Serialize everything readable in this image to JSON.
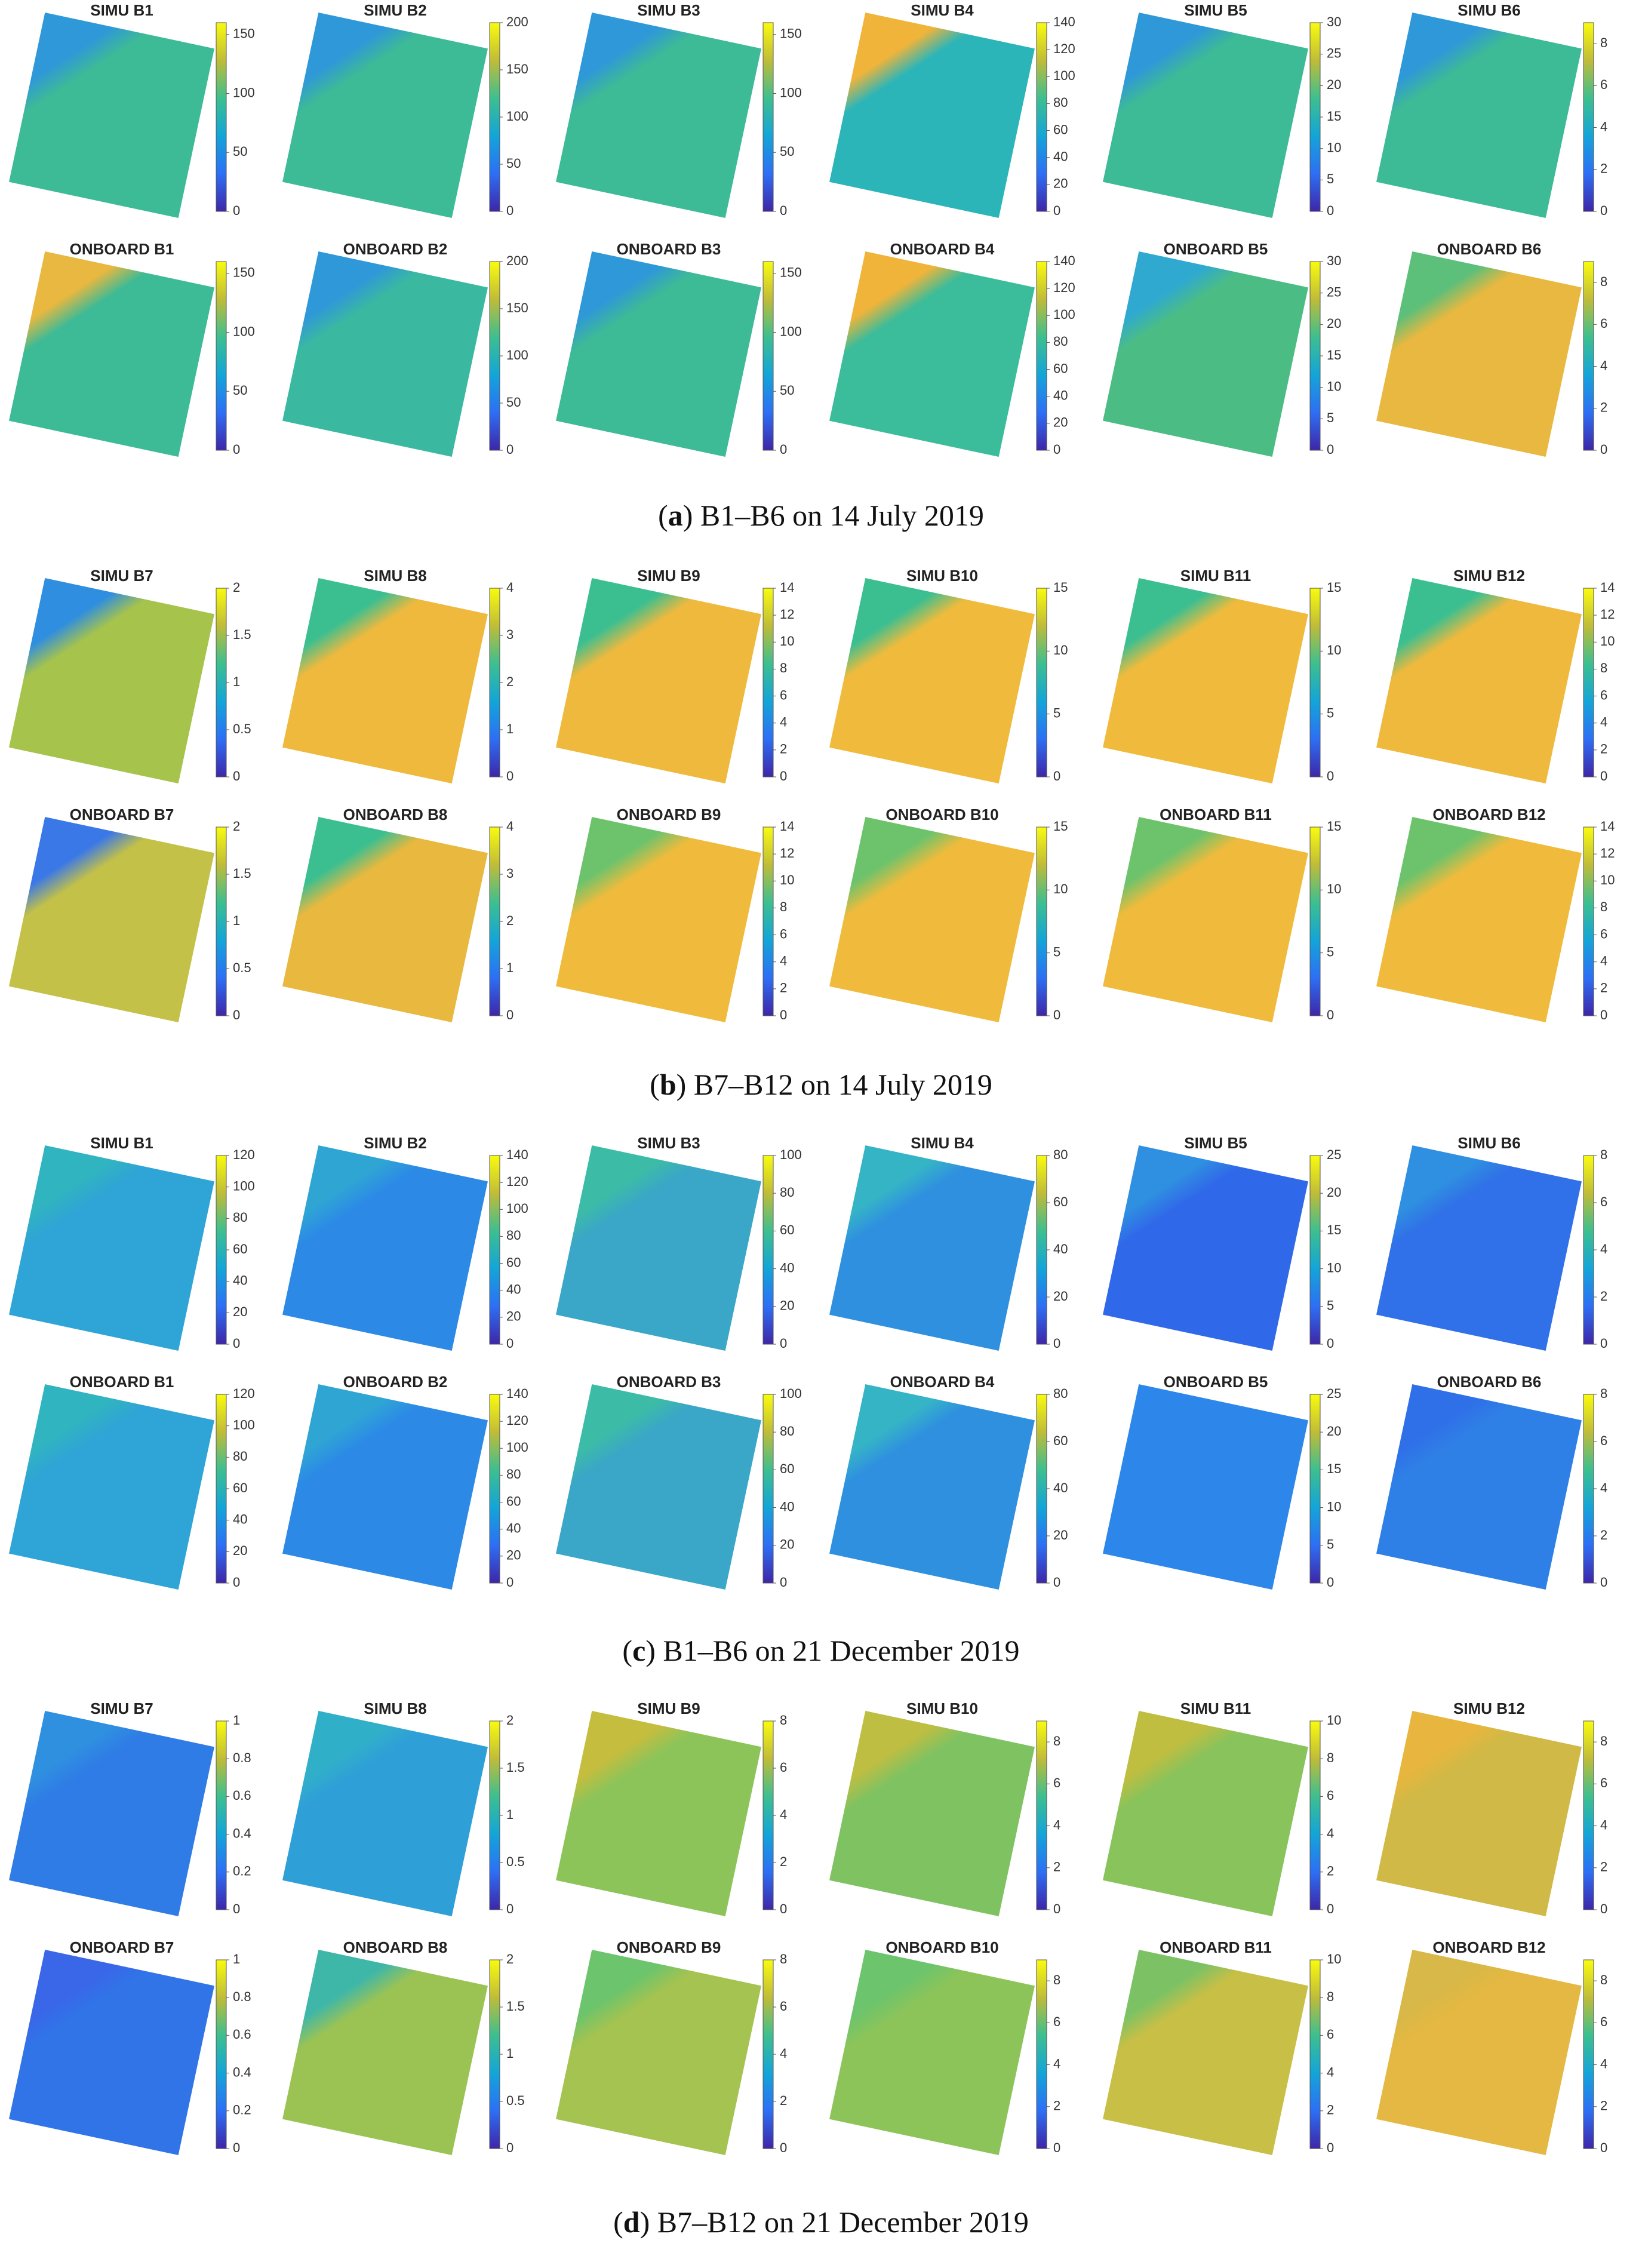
{
  "panels": [
    {
      "caption": [
        {
          "text": "("
        },
        {
          "text": "a",
          "bold": true
        },
        {
          "text": ") B1–B6 on 14 July 2019"
        }
      ],
      "rows": [
        {
          "titles": [
            "SIMU B1",
            "SIMU B2",
            "SIMU B3",
            "SIMU B4",
            "SIMU B5",
            "SIMU B6"
          ]
        },
        {
          "titles": [
            "ONBOARD B1",
            "ONBOARD B2",
            "ONBOARD B3",
            "ONBOARD B4",
            "ONBOARD B5",
            "ONBOARD B6"
          ]
        }
      ],
      "colorbars": [
        {
          "clim": [
            0,
            160
          ],
          "ticks": [
            0,
            50,
            100,
            150
          ]
        },
        {
          "clim": [
            0,
            200
          ],
          "ticks": [
            0,
            50,
            100,
            150,
            200
          ]
        },
        {
          "clim": [
            0,
            160
          ],
          "ticks": [
            0,
            50,
            100,
            150
          ]
        },
        {
          "clim": [
            0,
            140
          ],
          "ticks": [
            0,
            20,
            40,
            60,
            80,
            100,
            120,
            140
          ]
        },
        {
          "clim": [
            0,
            30
          ],
          "ticks": [
            0,
            5,
            10,
            15,
            20,
            25,
            30
          ]
        },
        {
          "clim": [
            0,
            9
          ],
          "ticks": [
            0,
            2,
            4,
            6,
            8
          ]
        }
      ]
    },
    {
      "caption": [
        {
          "text": "("
        },
        {
          "text": "b",
          "bold": true
        },
        {
          "text": ") B7–B12 on 14 July 2019"
        }
      ],
      "rows": [
        {
          "titles": [
            "SIMU B7",
            "SIMU B8",
            "SIMU B9",
            "SIMU B10",
            "SIMU B11",
            "SIMU B12"
          ]
        },
        {
          "titles": [
            "ONBOARD B7",
            "ONBOARD B8",
            "ONBOARD B9",
            "ONBOARD B10",
            "ONBOARD B11",
            "ONBOARD B12"
          ]
        }
      ],
      "colorbars": [
        {
          "clim": [
            0,
            2
          ],
          "ticks": [
            0,
            0.5,
            1,
            1.5,
            2
          ]
        },
        {
          "clim": [
            0,
            4
          ],
          "ticks": [
            0,
            1,
            2,
            3,
            4
          ]
        },
        {
          "clim": [
            0,
            14
          ],
          "ticks": [
            0,
            2,
            4,
            6,
            8,
            10,
            12,
            14
          ]
        },
        {
          "clim": [
            0,
            15
          ],
          "ticks": [
            0,
            5,
            10,
            15
          ]
        },
        {
          "clim": [
            0,
            15
          ],
          "ticks": [
            0,
            5,
            10,
            15
          ]
        },
        {
          "clim": [
            0,
            14
          ],
          "ticks": [
            0,
            2,
            4,
            6,
            8,
            10,
            12,
            14
          ]
        }
      ]
    },
    {
      "caption": [
        {
          "text": "("
        },
        {
          "text": "c",
          "bold": true
        },
        {
          "text": ") B1–B6 on 21 December 2019"
        }
      ],
      "rows": [
        {
          "titles": [
            "SIMU B1",
            "SIMU B2",
            "SIMU B3",
            "SIMU B4",
            "SIMU B5",
            "SIMU B6"
          ]
        },
        {
          "titles": [
            "ONBOARD B1",
            "ONBOARD B2",
            "ONBOARD B3",
            "ONBOARD B4",
            "ONBOARD B5",
            "ONBOARD B6"
          ]
        }
      ],
      "colorbars": [
        {
          "clim": [
            0,
            120
          ],
          "ticks": [
            0,
            20,
            40,
            60,
            80,
            100,
            120
          ]
        },
        {
          "clim": [
            0,
            140
          ],
          "ticks": [
            0,
            20,
            40,
            60,
            80,
            100,
            120,
            140
          ]
        },
        {
          "clim": [
            0,
            100
          ],
          "ticks": [
            0,
            20,
            40,
            60,
            80,
            100
          ]
        },
        {
          "clim": [
            0,
            80
          ],
          "ticks": [
            0,
            20,
            40,
            60,
            80
          ]
        },
        {
          "clim": [
            0,
            25
          ],
          "ticks": [
            0,
            5,
            10,
            15,
            20,
            25
          ]
        },
        {
          "clim": [
            0,
            8
          ],
          "ticks": [
            0,
            2,
            4,
            6,
            8
          ]
        }
      ]
    },
    {
      "caption": [
        {
          "text": "("
        },
        {
          "text": "d",
          "bold": true
        },
        {
          "text": ") B7–B12 on 21 December 2019"
        }
      ],
      "rows": [
        {
          "titles": [
            "SIMU B7",
            "SIMU B8",
            "SIMU B9",
            "SIMU B10",
            "SIMU B11",
            "SIMU B12"
          ]
        },
        {
          "titles": [
            "ONBOARD B7",
            "ONBOARD B8",
            "ONBOARD B9",
            "ONBOARD B10",
            "ONBOARD B11",
            "ONBOARD B12"
          ]
        }
      ],
      "colorbars": [
        {
          "clim": [
            0,
            1
          ],
          "ticks": [
            0,
            0.2,
            0.4,
            0.6,
            0.8,
            1
          ]
        },
        {
          "clim": [
            0,
            2
          ],
          "ticks": [
            0,
            0.5,
            1,
            1.5,
            2
          ]
        },
        {
          "clim": [
            0,
            8
          ],
          "ticks": [
            0,
            2,
            4,
            6,
            8
          ]
        },
        {
          "clim": [
            0,
            9
          ],
          "ticks": [
            0,
            2,
            4,
            6,
            8
          ]
        },
        {
          "clim": [
            0,
            10
          ],
          "ticks": [
            0,
            2,
            4,
            6,
            8,
            10
          ]
        },
        {
          "clim": [
            0,
            9
          ],
          "ticks": [
            0,
            2,
            4,
            6,
            8
          ]
        }
      ]
    }
  ]
}
